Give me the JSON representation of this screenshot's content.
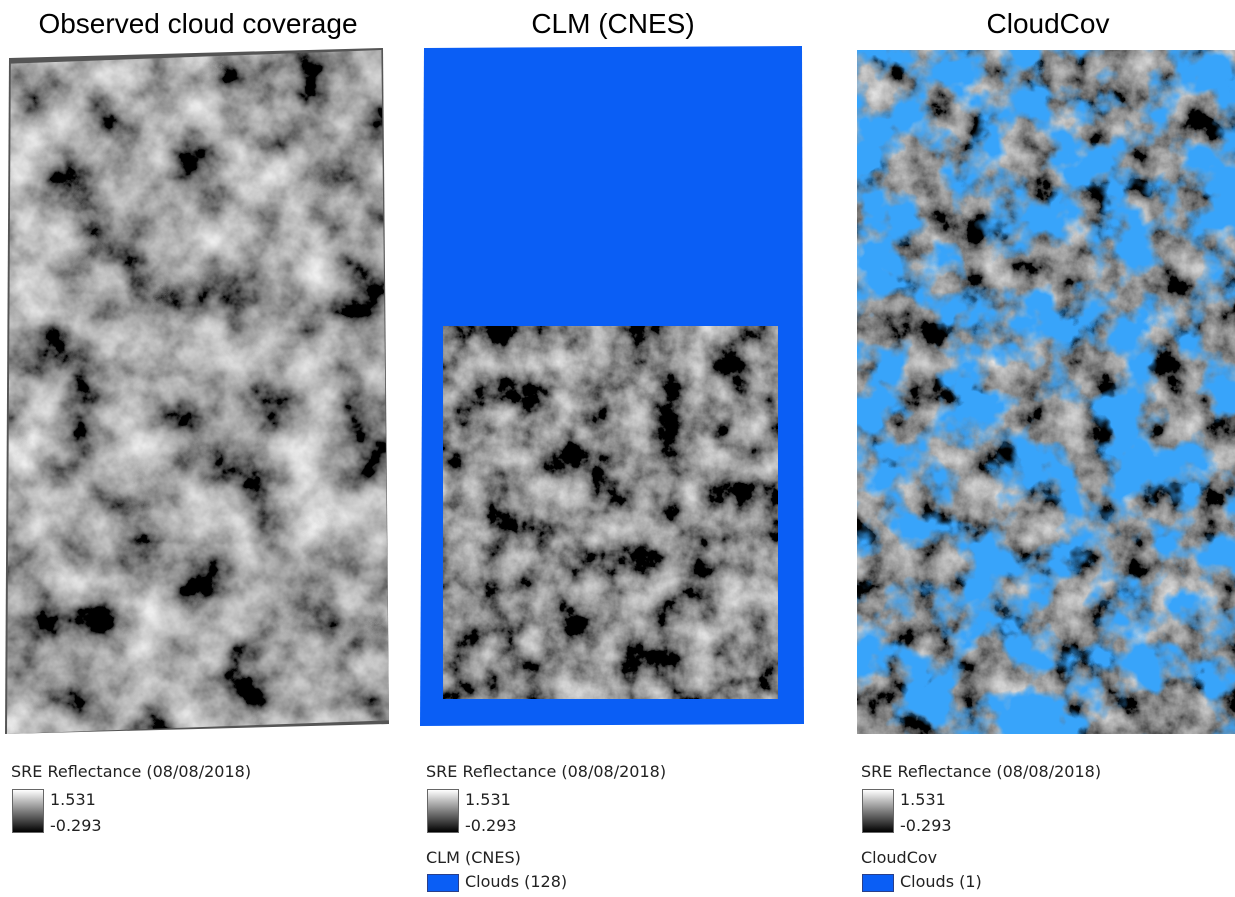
{
  "panels": [
    {
      "title": "Observed cloud coverage",
      "legend": {
        "title": "SRE Reflectance (08/08/2018)",
        "max": 1.531,
        "min": -0.293
      }
    },
    {
      "title": "CLM (CNES)",
      "legend": {
        "title": "SRE Reflectance (08/08/2018)",
        "max": 1.531,
        "min": -0.293
      },
      "mask": {
        "title": "CLM (CNES)",
        "label": "Clouds (128)"
      }
    },
    {
      "title": "CloudCov",
      "legend": {
        "title": "SRE Reflectance (08/08/2018)",
        "max": 1.531,
        "min": -0.293
      },
      "mask": {
        "title": "CloudCov",
        "label": "Clouds (1)"
      }
    }
  ]
}
